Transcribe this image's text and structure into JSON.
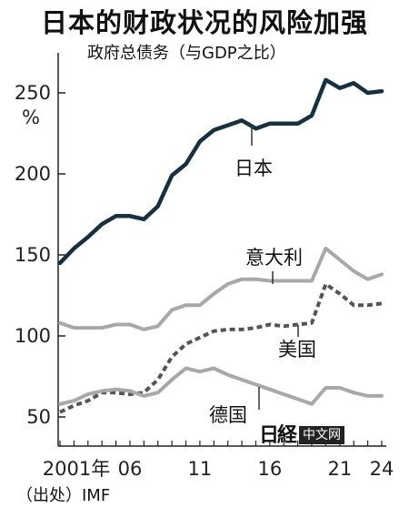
{
  "title": "日本的财政状况的风险加强",
  "subtitle": "政府总债务（与GDP之比）",
  "unit": "%",
  "source": "（出处）IMF",
  "watermark": {
    "logo_text": "日経",
    "box_text": "中文网"
  },
  "colors": {
    "japan": "#17303f",
    "italy": "#a8a8a8",
    "usa": "#555555",
    "germany": "#a8a8a8"
  },
  "chart_data": {
    "type": "line",
    "title": "日本的财政状况的风险加强",
    "ylabel": "%",
    "ylim": [
      40,
      270
    ],
    "yticks": [
      50,
      100,
      150,
      200,
      250
    ],
    "xlim": [
      2001,
      2024
    ],
    "xticks": [
      {
        "value": 2001,
        "label": "2001年"
      },
      {
        "value": 2006,
        "label": "06"
      },
      {
        "value": 2011,
        "label": "11"
      },
      {
        "value": 2016,
        "label": "16"
      },
      {
        "value": 2021,
        "label": "21"
      },
      {
        "value": 2024,
        "label": "24"
      }
    ],
    "x": [
      2001,
      2002,
      2003,
      2004,
      2005,
      2006,
      2007,
      2008,
      2009,
      2010,
      2011,
      2012,
      2013,
      2014,
      2015,
      2016,
      2017,
      2018,
      2019,
      2020,
      2021,
      2022,
      2023,
      2024
    ],
    "series": [
      {
        "name": "日本",
        "style": "solid-dark",
        "values": [
          145,
          154,
          161,
          169,
          174,
          174,
          172,
          180,
          199,
          206,
          220,
          227,
          230,
          233,
          228,
          231,
          231,
          231,
          236,
          258,
          253,
          256,
          250,
          251
        ]
      },
      {
        "name": "意大利",
        "style": "solid-gray",
        "values": [
          108,
          105,
          105,
          105,
          107,
          107,
          104,
          106,
          116,
          119,
          119,
          126,
          132,
          135,
          135,
          134,
          134,
          134,
          134,
          154,
          147,
          140,
          135,
          138
        ]
      },
      {
        "name": "美国",
        "style": "dashed",
        "values": [
          53,
          57,
          60,
          65,
          65,
          64,
          65,
          73,
          87,
          95,
          99,
          103,
          104,
          104,
          105,
          107,
          106,
          107,
          108,
          132,
          126,
          119,
          119,
          120
        ]
      },
      {
        "name": "德国",
        "style": "solid-gray",
        "values": [
          58,
          60,
          64,
          66,
          67,
          66,
          63,
          65,
          73,
          80,
          78,
          80,
          76,
          73,
          70,
          67,
          64,
          61,
          58,
          68,
          68,
          65,
          63,
          63
        ]
      }
    ]
  }
}
